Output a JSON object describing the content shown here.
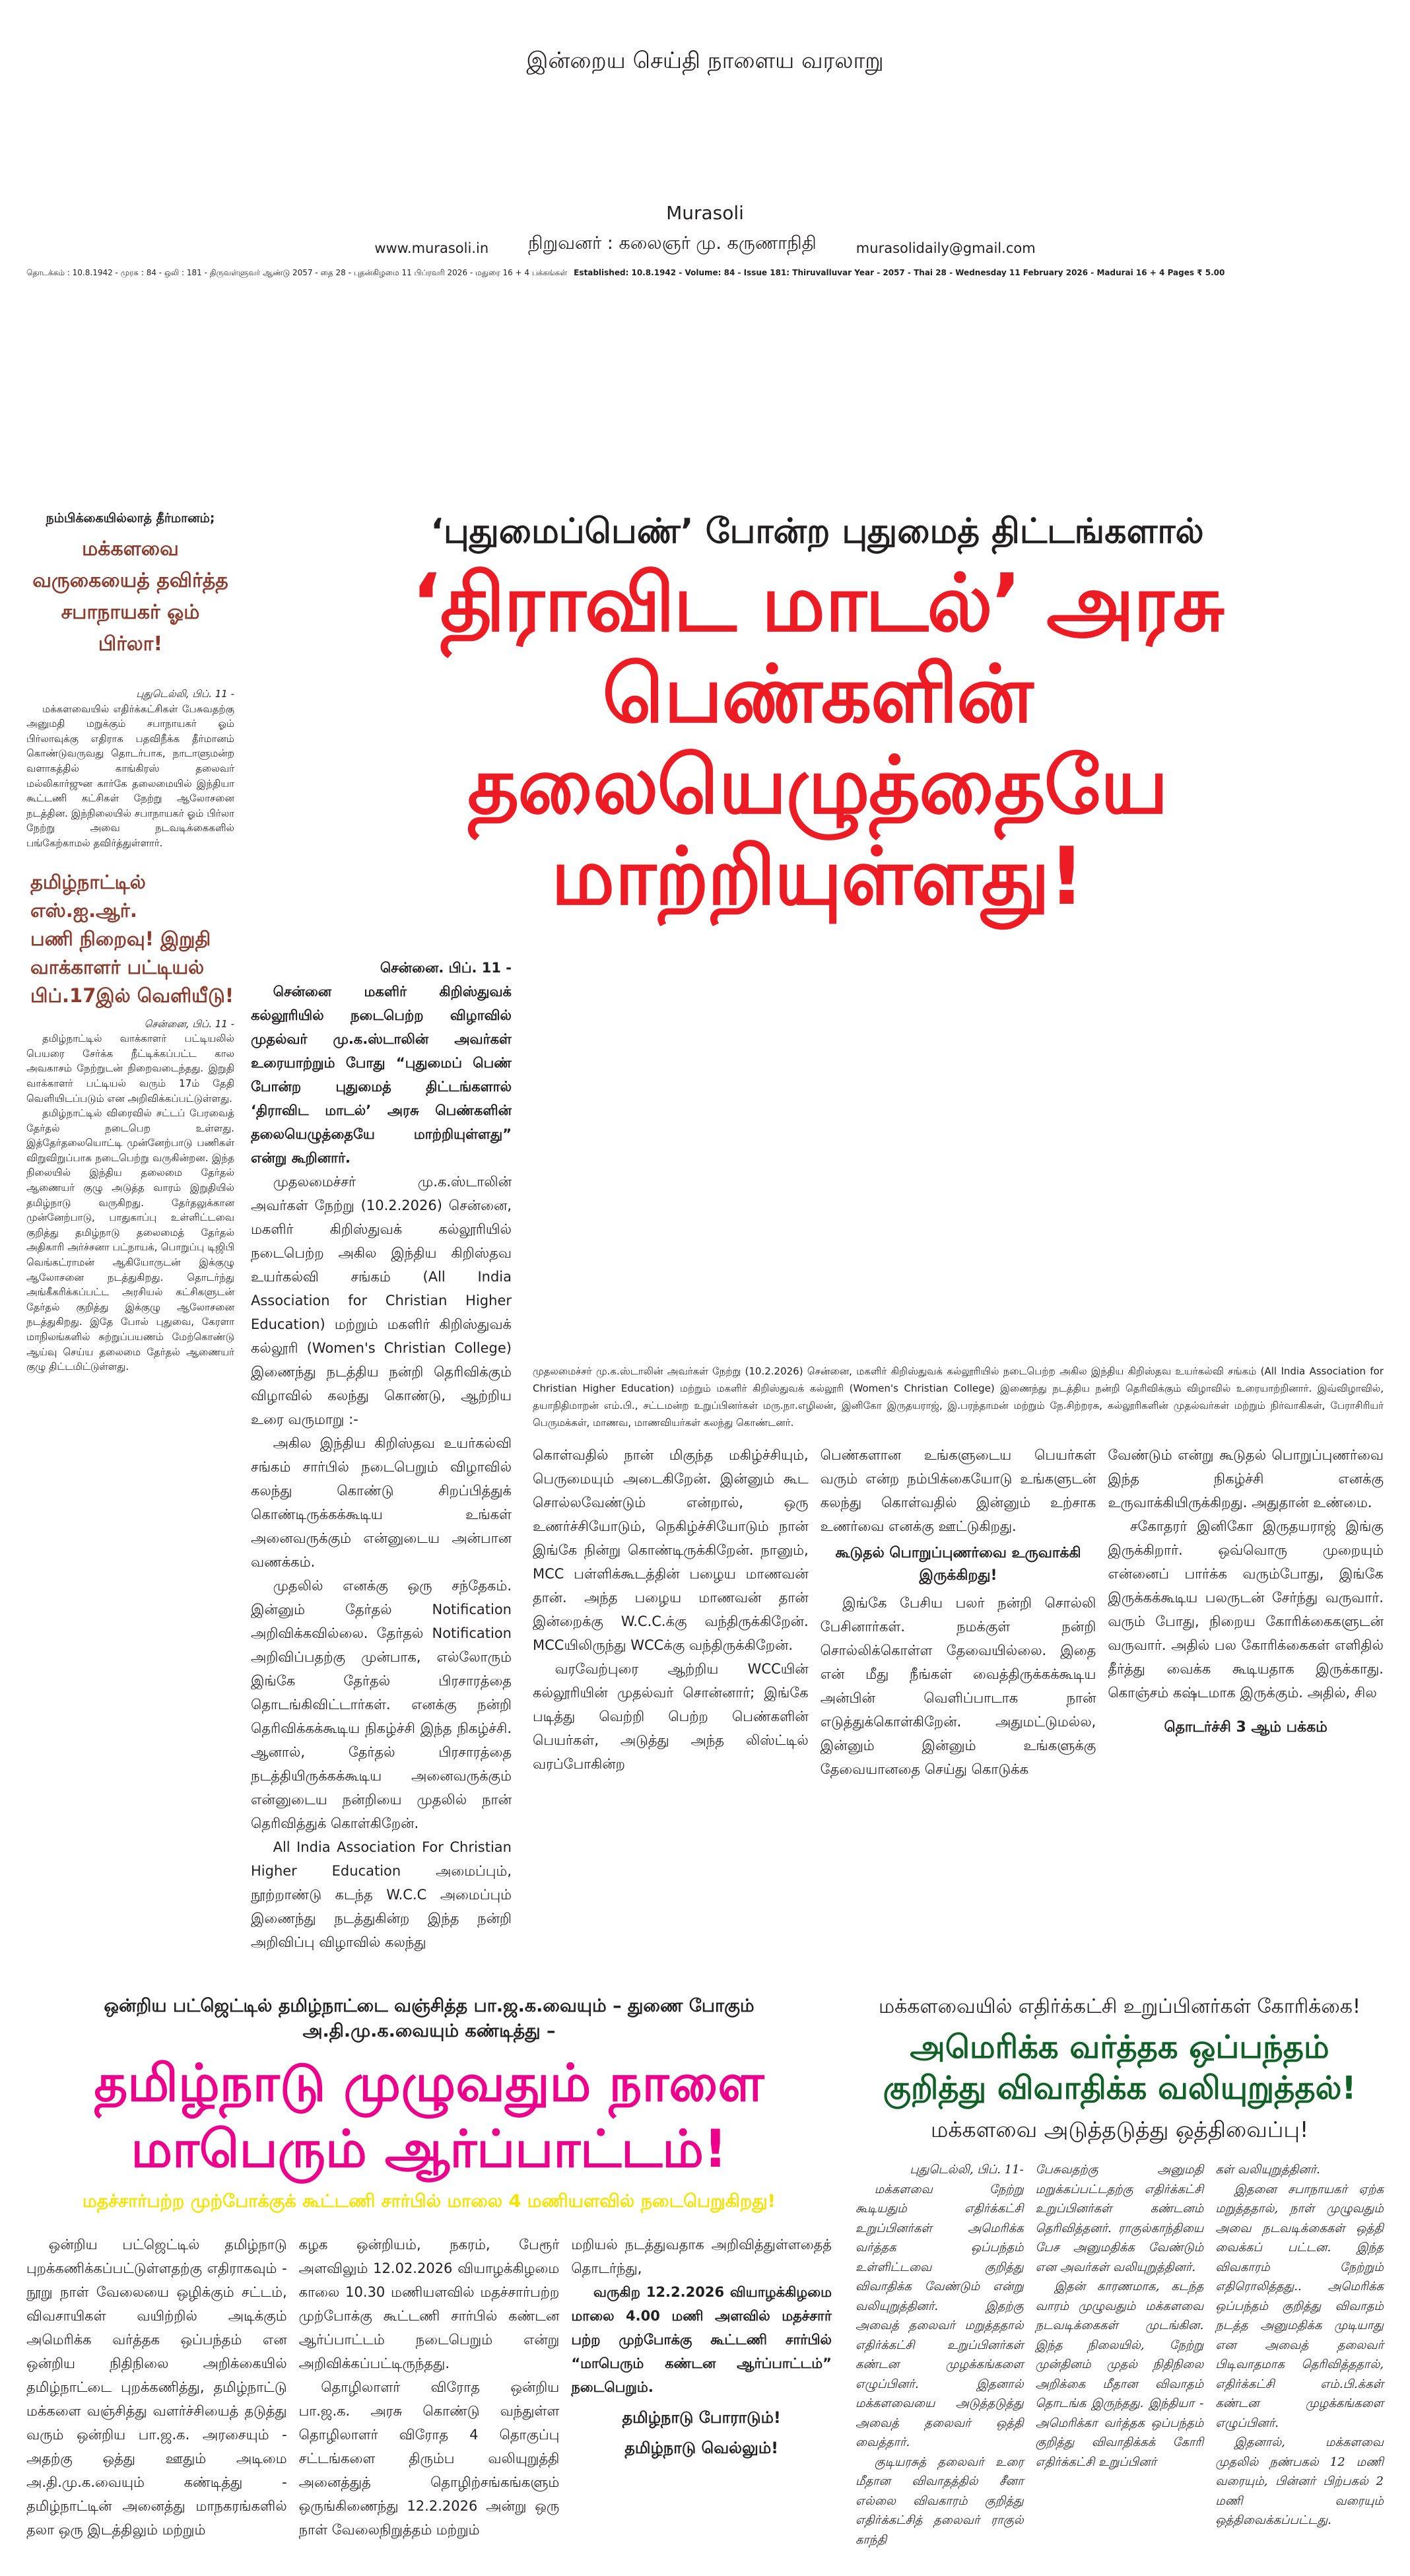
{
  "masthead": {
    "tagline": "இன்றைய செய்தி நாளைய வரலாறு",
    "name": "Murasoli",
    "founder": "நிறுவனர் : கலைஞர் மு. கருணாநிதி",
    "website": "www.murasoli.in",
    "email": "murasolidaily@gmail.com",
    "dateline_tamil": "தொடக்கம் : 10.8.1942 - முரசு : 84 - ஒலி : 181 - திருவள்ளுவர் ஆண்டு 2057 - தை 28 - புதன்கிழமை 11 பிப்ரவரி 2026 - மதுரை 16 + 4 பக்கங்கள்",
    "dateline_english": "Established: 10.8.1942 - Volume: 84 - Issue 181: Thiruvalluvar Year - 2057 - Thai 28 - Wednesday 11 February 2026 - Madurai 16 + 4 Pages ₹ 5.00"
  },
  "colors": {
    "lead_red": "#ed1c24",
    "brown": "#8e3b2c",
    "pink": "#ec008c",
    "yellow": "#fff200",
    "green": "#0f6125"
  },
  "side_story": {
    "kicker": "நம்பிக்கையில்லாத் தீர்மானம்;",
    "headline": [
      "மக்களவை",
      "வருகையைத் தவிர்த்த",
      "சபாநாயகர் ஓம் பிர்லா!"
    ],
    "dateline": "புதுடெல்லி, பிப். 11 -",
    "body": "மக்களவையில் எதிர்க்கட்சிகள் பேசுவதற்கு அனுமதி மறுக்கும் சபாநாயகர் ஓம் பிர்லாவுக்கு எதிராக பதவிநீக்க தீர்மானம் கொண்டுவருவது தொடர்பாக, நாடாளுமன்ற வளாகத்தில் காங்கிரஸ் தலைவர் மல்லிகார்ஜுன கார்கே தலைமையில் இந்தியா கூட்டணி கட்சிகள் நேற்று ஆலோசனை நடத்தின. இந்நிலையில் சபாநாயகர் ஓம் பிர்லா நேற்று அவை நடவடிக்கைகளில் பங்கேற்காமல் தவிர்த்துள்ளார்."
  },
  "sir_story": {
    "headline": [
      "தமிழ்நாட்டில் எஸ்.ஐ.ஆர்.",
      "பணி நிறைவு! இறுதி",
      "வாக்காளர் பட்டியல்",
      "பிப்.17இல் வெளியீடு!"
    ],
    "dateline": "சென்னை, பிப். 11 -",
    "paragraphs": [
      "தமிழ்நாட்டில் வாக்காளர் பட்டியலில் பெயரை சேர்க்க நீட்டிக்கப்பட்ட கால அவகாசம் நேற்றுடன் நிறைவடைந்தது. இறுதி வாக்காளர் பட்டியல் வரும் 17ம் தேதி வெளியிடப்படும் என அறிவிக்கப்பட்டுள்ளது.",
      "தமிழ்நாட்டில் விரைவில் சட்டப் பேரவைத் தேர்தல் நடைபெற உள்ளது. இத்தேர்தலையொட்டி முன்னேற்பாடு பணிகள் விறுவிறுப்பாக நடைபெற்று வருகின்றன. இந்த நிலையில் இந்திய தலைமை தேர்தல் ஆணையர் குழு அடுத்த வாரம் இறுதியில் தமிழ்நாடு வருகிறது. தேர்தலுக்கான முன்னேற்பாடு, பாதுகாப்பு உள்ளிட்டவை குறித்து தமிழ்நாடு தலைமைத் தேர்தல் அதிகாரி அர்ச்சனா பட்நாயக், பொறுப்பு டிஜிபி வெங்கட்ராமன் ஆகியோருடன் இக்குழு ஆலோசனை நடத்துகிறது. தொடர்ந்து அங்கீகரிக்கப்பட்ட அரசியல் கட்சிகளுடன் தேர்தல் குறித்து இக்குழு ஆலோசனை நடத்துகிறது. இதே போல் புதுவை, கேரளா மாநிலங்களில் சுற்றுப்பயணம் மேற்கொண்டு ஆய்வு செய்ய தலைமை தேர்தல் ஆணையர் குழு திட்டமிட்டுள்ளது."
    ]
  },
  "lead_story": {
    "deck": "‘புதுமைப்பெண்’ போன்ற புதுமைத் திட்டங்களால்",
    "headline": "‘திராவிட மாடல்’ அரசு பெண்களின் தலையெழுத்தையே மாற்றியுள்ளது!",
    "dateline": "சென்னை. பிப். 11 -",
    "intro": "சென்னை மகளிர் கிறிஸ்துவக் கல்லூரியில் நடைபெற்ற விழாவில் முதல்வர் மு.க.ஸ்டாலின் அவர்கள் உரையாற்றும் போது “புதுமைப் பெண் போன்ற புதுமைத் திட்டங்களால் ‘திராவிட மாடல்’ அரசு பெண்களின் தலையெழுத்தையே மாற்றியுள்ளது” என்று கூறினார்.",
    "paragraphs_col1": [
      "முதலமைச்சர் மு.க.ஸ்டாலின் அவர்கள் நேற்று (10.2.2026) சென்னை, மகளிர் கிறிஸ்துவக் கல்லூரியில் நடைபெற்ற அகில இந்திய கிறிஸ்தவ உயர்கல்வி சங்கம் (All India Association for Christian Higher Education) மற்றும் மகளிர் கிறிஸ்துவக் கல்லூரி (Women's Christian College) இணைந்து நடத்திய நன்றி தெரிவிக்கும் விழாவில் கலந்து கொண்டு, ஆற்றிய உரை வருமாறு :-",
      "அகில இந்திய கிறிஸ்தவ உயர்கல்வி சங்கம் சார்பில் நடைபெறும் விழாவில் கலந்து கொண்டு சிறப்பித்துக் கொண்டிருக்கக்கூடிய உங்கள் அனைவருக்கும் என்னுடைய அன்பான வணக்கம்.",
      "முதலில் எனக்கு ஒரு சந்தேகம். இன்னும் தேர்தல் Notification அறிவிக்கவில்லை. தேர்தல் Notification அறிவிப்பதற்கு முன்பாக, எல்லோரும் இங்கே தேர்தல் பிரசாரத்தை தொடங்கிவிட்டார்கள். எனக்கு நன்றி தெரிவிக்கக்கூடிய நிகழ்ச்சி இந்த நிகழ்ச்சி. ஆனால், தேர்தல் பிரசாரத்தை நடத்தியிருக்கக்கூடிய அனைவருக்கும் என்னுடைய நன்றியை முதலில் நான் தெரிவித்துக் கொள்கிறேன்.",
      "All India Association For Christian Higher Education அமைப்பும், நூற்றாண்டு கடந்த W.C.C அமைப்பும் இணைந்து நடத்துகின்ற இந்த நன்றி அறிவிப்பு விழாவில் கலந்து"
    ],
    "photo_caption": "முதலமைச்சர் மு.க.ஸ்டாலின் அவர்கள் நேற்று (10.2.2026) சென்னை, மகளிர் கிறிஸ்துவக் கல்லூரியில் நடைபெற்ற அகில இந்திய கிறிஸ்தவ உயர்கல்வி சங்கம் (All India Association for Christian Higher Education) மற்றும் மகளிர் கிறிஸ்துவக் கல்லூரி (Women's Christian College) இணைந்து நடத்திய நன்றி தெரிவிக்கும் விழாவில் உரையாற்றினார். இவ்விழாவில், தயாநிதிமாறன் எம்.பி., சட்டமன்ற உறுப்பினர்கள் மரு.நா.எழிலன், இனிகோ இருதயராஜ், இ.பரந்தாமன் மற்றும் நே.சிற்றரசு, கல்லூரிகளின் முதல்வர்கள் மற்றும் நிர்வாகிகள், பேராசிரியர் பெருமக்கள், மாணவ, மாணவியர்கள் கலந்து கொண்டனர்.",
    "paragraphs_col2": [
      "கொள்வதில் நான் மிகுந்த மகிழ்ச்சியும், பெருமையும் அடைகிறேன். இன்னும் கூட சொல்லவேண்டும் என்றால், ஒரு உணர்ச்சியோடும், நெகிழ்ச்சியோடும் நான் இங்கே நின்று கொண்டிருக்கிறேன். நானும், MCC பள்ளிக்கூடத்தின் பழைய மாணவன் தான். அந்த பழைய மாணவன் தான் இன்றைக்கு W.C.C.க்கு வந்திருக்கிறேன். MCCயிலிருந்து WCCக்கு வந்திருக்கிறேன்.",
      "வரவேற்புரை ஆற்றிய WCCயின் கல்லூரியின் முதல்வர் சொன்னார்; இங்கே படித்து வெற்றி பெற்ற பெண்களின் பெயர்கள், அடுத்து அந்த லிஸ்ட்டில் வரப்போகின்ற"
    ],
    "paragraphs_col3a": [
      "பெண்களான உங்களுடைய பெயர்கள் வரும் என்ற நம்பிக்கையோடு உங்களுடன் கலந்து கொள்வதில் இன்னும் உற்சாக உணர்வை எனக்கு ஊட்டுகிறது."
    ],
    "subhead": "கூடுதல் பொறுப்புணர்வை உருவாக்கி இருக்கிறது!",
    "paragraphs_col3b": [
      "இங்கே பேசிய பலர் நன்றி சொல்லி பேசினார்கள். நமக்குள் நன்றி சொல்லிக்கொள்ள தேவையில்லை. இதை என் மீது நீங்கள் வைத்திருக்கக்கூடிய அன்பின் வெளிப்பாடாக நான் எடுத்துக்கொள்கிறேன். அதுமட்டுமல்ல, இன்னும் இன்னும் உங்களுக்கு தேவையானதை செய்து கொடுக்க"
    ],
    "paragraphs_col4": [
      "வேண்டும் என்று கூடுதல் பொறுப்புணர்வை இந்த நிகழ்ச்சி எனக்கு உருவாக்கியிருக்கிறது. அதுதான் உண்மை.",
      "சகோதரர் இனிகோ இருதயராஜ் இங்கு இருக்கிறார். ஒவ்வொரு முறையும் என்னைப் பார்க்க வரும்போது, இங்கே இருக்கக்கூடிய பலருடன் சேர்ந்து வருவார். வரும் போது, நிறைய கோரிக்கைகளுடன் வருவார். அதில் பல கோரிக்கைகள் எளிதில் தீர்த்து வைக்க கூடியதாக இருக்காது. கொஞ்சம் கஷ்டமாக இருக்கும். அதில், சில"
    ],
    "continued": "தொடர்ச்சி 3 ஆம் பக்கம்"
  },
  "protest_story": {
    "kicker": "ஒன்றிய பட்ஜெட்டில் தமிழ்நாட்டை வஞ்சித்த பா.ஜ.க.வையும் – துணை போகும் அ.தி.மு.க.வையும் கண்டித்து –",
    "headline": "தமிழ்நாடு முழுவதும் நாளை மாபெரும் ஆர்ப்பாட்டம்!",
    "subhead": "மதச்சார்பற்ற முற்போக்குக் கூட்டணி சார்பில் மாலை 4 மணியளவில் நடைபெறுகிறது!",
    "col1": "ஒன்றிய பட்ஜெட்டில் தமிழ்நாடு புறக்கணிக்கப்பட்டுள்ளதற்கு எதிராகவும் - நூறு நாள் வேலையை ஒழிக்கும் சட்டம், விவசாயிகள் வயிற்றில் அடிக்கும் அமெரிக்க வர்த்தக ஒப்பந்தம் என ஒன்றிய நிதிநிலை அறிக்கையில் தமிழ்நாட்டை புறக்கணித்து, தமிழ்நாட்டு மக்களை வஞ்சித்து வளர்ச்சியைத் தடுத்து வரும் ஒன்றிய பா.ஜ.க. அரசையும் - அதற்கு ஒத்து ஊதும் அடிமை அ.தி.மு.க.வையும் கண்டித்து - தமிழ்நாட்டின் அனைத்து மாநகரங்களில் தலா ஒரு இடத்திலும் மற்றும்",
    "col2": [
      "கழக ஒன்றியம், நகரம், பேரூர் அளவிலும் 12.02.2026 வியாழக்கிழமை காலை 10.30 மணியளவில் மதச்சார்பற்ற முற்போக்கு கூட்டணி சார்பில் கண்டன ஆர்ப்பாட்டம் நடைபெறும் என்று அறிவிக்கப்பட்டிருந்தது.",
      "தொழிலாளர் விரோத ஒன்றிய பா.ஜ.க. அரசு கொண்டு வந்துள்ள தொழிலாளர் விரோத 4 தொகுப்பு சட்டங்களை திரும்ப வலியுறுத்தி அனைத்துத் தொழிற்சங்கங்களும் ஒருங்கிணைந்து 12.2.2026 அன்று ஒரு நாள் வேலைநிறுத்தம் மற்றும்"
    ],
    "col3": "மறியல் நடத்துவதாக அறிவித்துள்ளதைத் தொடர்ந்து,",
    "col3_bold": "வருகிற 12.2.2026 வியாழக்கிழமை மாலை 4.00 மணி அளவில் மதச்சார் பற்ற முற்போக்கு கூட்டணி சார்பில் “மாபெரும் கண்டன ஆர்ப்பாட்டம்” நடைபெறும்.",
    "slogans": [
      "தமிழ்நாடு போராடும்!",
      "தமிழ்நாடு வெல்லும்!"
    ]
  },
  "lok_sabha_story": {
    "kicker": "மக்களவையில் எதிர்க்கட்சி உறுப்பினர்கள் கோரிக்கை!",
    "headline": "அமெரிக்க வர்த்தக ஒப்பந்தம் குறித்து விவாதிக்க வலியுறுத்தல்!",
    "subline": "மக்களவை அடுத்தடுத்து ஒத்திவைப்பு!",
    "dateline": "புதுடெல்லி, பிப். 11-",
    "col1": [
      "மக்களவை நேற்று கூடியதும் எதிர்க்கட்சி உறுப்பினர்கள் அமெரிக்க வர்த்தக ஒப்பந்தம் உள்ளிட்டவை குறித்து விவாதிக்க வேண்டும் என்று வலியுறுத்தினர். இதற்கு அவைத் தலைவர் மறுத்ததால் எதிர்க்கட்சி உறுப்பினர்கள் கண்டன முழக்கங்களை எழுப்பினர். இதனால் மக்களவையை அடுத்தடுத்து அவைத் தலைவர் ஒத்தி வைத்தார்.",
      "குடியரசுத் தலைவர் உரை மீதான விவாதத்தில் சீனா எல்லை விவகாரம் குறித்து எதிர்க்கட்சித் தலைவர் ராகுல் காந்தி"
    ],
    "col2": [
      "பேசுவதற்கு அனுமதி மறுக்கப்பட்டதற்கு எதிர்க்கட்சி உறுப்பினர்கள் கண்டனம் தெரிவித்தனர். ராகுல்காந்தியை பேச அனுமதிக்க வேண்டும் என அவர்கள் வலியுறுத்தினர்.",
      "இதன் காரணமாக, கடந்த வாரம் முழுவதும் மக்களவை நடவடிக்கைகள் முடங்கின. இந்த நிலையில், நேற்று முன்தினம் முதல் நிதிநிலை அறிக்கை மீதான விவாதம் தொடங்க இருந்தது. இந்தியா - அமெரிக்கா வர்த்தக ஒப்பந்தம் குறித்து விவாதிக்கக் கோரி எதிர்க்கட்சி உறுப்பினர்"
    ],
    "col3": [
      "கள் வலியுறுத்தினர்.",
      "இதனை சபாநாயகர் ஏற்க மறுத்ததால், நாள் முழுவதும் அவை நடவடிக்கைகள் ஒத்தி வைக்கப் பட்டன. இந்த விவகாரம் நேற்றும் எதிரொலித்தது.. அமெரிக்க ஒப்பந்தம் குறித்து விவாதம் நடத்த அனுமதிக்க முடியாது என அவைத் தலைவர் பிடிவாதமாக தெரிவித்ததால், எதிர்க்கட்சி எம்.பி.க்கள் கண்டன முழக்கங்களை எழுப்பினர்.",
      "இதனால், மக்களவை முதலில் நண்பகல் 12 மணி வரையும், பின்னர் பிற்பகல் 2 மணி வரையும் ஒத்திவைக்கப்பட்டது."
    ]
  }
}
